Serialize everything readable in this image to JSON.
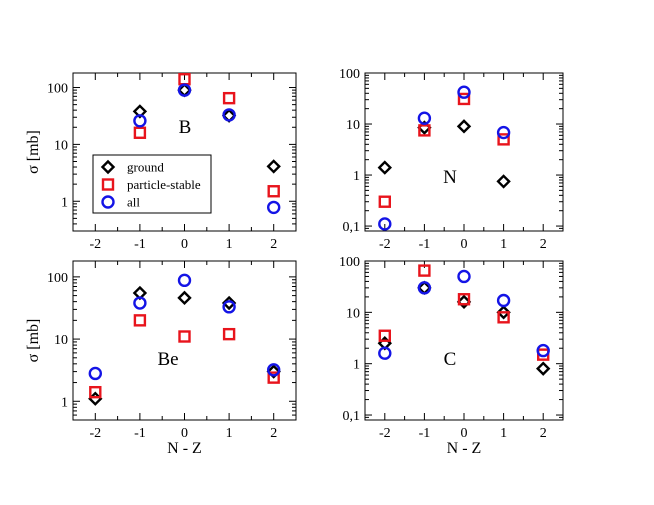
{
  "colors": {
    "ground": "#000000",
    "particle_stable": "#e8141c",
    "all": "#1414e6",
    "axis": "#000000",
    "background": "#ffffff"
  },
  "shared_labels": {
    "xlabel": "N - Z",
    "ylabel": "σ [mb]"
  },
  "legend": {
    "entries": [
      {
        "key": "ground",
        "label": "ground",
        "marker": "diamond"
      },
      {
        "key": "particle_stable",
        "label": "particle-stable",
        "marker": "square"
      },
      {
        "key": "all",
        "label": "all",
        "marker": "circle"
      }
    ]
  },
  "chart_data": [
    {
      "type": "scatter",
      "panel_label": "B",
      "xlabel": "",
      "ylabel": "σ [mb]",
      "yscale": "log",
      "xlim": [
        -2.5,
        2.5
      ],
      "ylim": [
        0.3,
        180
      ],
      "xticks": [
        -2,
        -1,
        0,
        1,
        2
      ],
      "yticks": [
        1,
        10,
        100
      ],
      "ytick_labels": [
        "1",
        "10",
        "100"
      ],
      "legend": "inside lower-left",
      "series": [
        {
          "name": "ground",
          "x": [
            -1,
            0,
            1,
            2
          ],
          "y": [
            38,
            90,
            32,
            4.1
          ]
        },
        {
          "name": "particle-stable",
          "x": [
            -1,
            0,
            1,
            2
          ],
          "y": [
            16,
            140,
            65,
            1.5
          ]
        },
        {
          "name": "all",
          "x": [
            -1,
            0,
            1,
            2
          ],
          "y": [
            26,
            90,
            33,
            0.78
          ]
        }
      ]
    },
    {
      "type": "scatter",
      "panel_label": "N",
      "xlabel": "",
      "ylabel": "",
      "yscale": "log",
      "xlim": [
        -2.5,
        2.5
      ],
      "ylim": [
        0.08,
        100
      ],
      "xticks": [
        -2,
        -1,
        0,
        1,
        2
      ],
      "yticks": [
        0.1,
        1,
        10,
        100
      ],
      "ytick_labels": [
        "0,1",
        "1",
        "10",
        "100"
      ],
      "series": [
        {
          "name": "ground",
          "x": [
            -2,
            -1,
            0,
            1
          ],
          "y": [
            1.4,
            8.5,
            9,
            0.75
          ]
        },
        {
          "name": "particle-stable",
          "x": [
            -2,
            -1,
            0,
            1
          ],
          "y": [
            0.3,
            7.5,
            31,
            5
          ]
        },
        {
          "name": "all",
          "x": [
            -2,
            -1,
            0,
            1
          ],
          "y": [
            0.11,
            13,
            42,
            6.8
          ]
        }
      ]
    },
    {
      "type": "scatter",
      "panel_label": "Be",
      "xlabel": "N - Z",
      "ylabel": "σ [mb]",
      "yscale": "log",
      "xlim": [
        -2.5,
        2.5
      ],
      "ylim": [
        0.5,
        180
      ],
      "xticks": [
        -2,
        -1,
        0,
        1,
        2
      ],
      "yticks": [
        1,
        10,
        100
      ],
      "ytick_labels": [
        "1",
        "10",
        "100"
      ],
      "series": [
        {
          "name": "ground",
          "x": [
            -2,
            -1,
            0,
            1,
            2
          ],
          "y": [
            1.1,
            55,
            46,
            38,
            3
          ]
        },
        {
          "name": "particle-stable",
          "x": [
            -2,
            -1,
            0,
            1,
            2
          ],
          "y": [
            1.4,
            20,
            11,
            12,
            2.4
          ]
        },
        {
          "name": "all",
          "x": [
            -2,
            -1,
            0,
            1,
            2
          ],
          "y": [
            2.8,
            38,
            88,
            33,
            3.2
          ]
        }
      ]
    },
    {
      "type": "scatter",
      "panel_label": "C",
      "xlabel": "N - Z",
      "ylabel": "",
      "yscale": "log",
      "xlim": [
        -2.5,
        2.5
      ],
      "ylim": [
        0.08,
        100
      ],
      "xticks": [
        -2,
        -1,
        0,
        1,
        2
      ],
      "yticks": [
        0.1,
        1,
        10,
        100
      ],
      "ytick_labels": [
        "0,1",
        "1",
        "10",
        "100"
      ],
      "series": [
        {
          "name": "ground",
          "x": [
            -2,
            -1,
            0,
            1,
            2
          ],
          "y": [
            2.5,
            30,
            16,
            10,
            0.8
          ]
        },
        {
          "name": "particle-stable",
          "x": [
            -2,
            -1,
            0,
            1,
            2
          ],
          "y": [
            3.5,
            65,
            18,
            8,
            1.5
          ]
        },
        {
          "name": "all",
          "x": [
            -2,
            -1,
            0,
            1,
            2
          ],
          "y": [
            1.6,
            30,
            50,
            17,
            1.8
          ]
        }
      ]
    }
  ]
}
